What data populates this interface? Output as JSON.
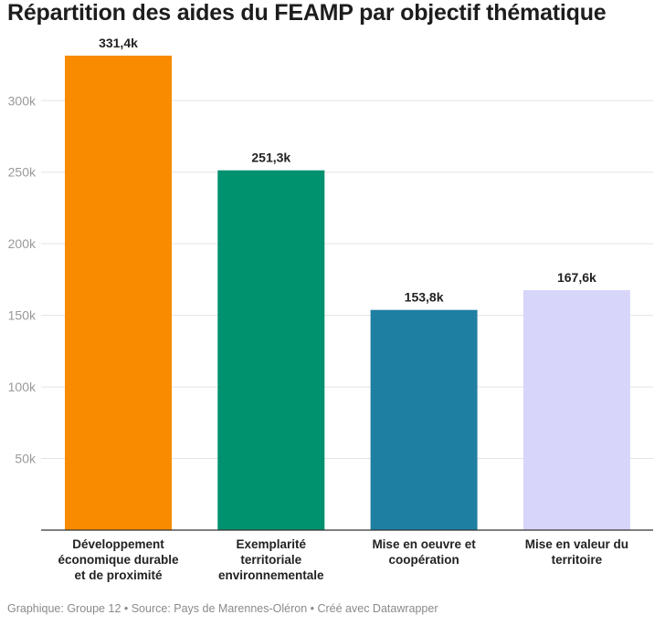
{
  "title": "Répartition des aides du FEAMP par objectif thématique",
  "footer": "Graphique: Groupe 12 • Source: Pays de Marennes-Oléron • Créé avec Datawrapper",
  "chart_data": {
    "type": "bar",
    "title": "Répartition des aides du FEAMP par objectif thématique",
    "xlabel": "",
    "ylabel": "",
    "ylim": [
      0,
      331400
    ],
    "yticks": [
      50000,
      100000,
      150000,
      200000,
      250000,
      300000
    ],
    "ytick_labels": [
      "50k",
      "100k",
      "150k",
      "200k",
      "250k",
      "300k"
    ],
    "grid": true,
    "categories": [
      "Développement économique durable et de proximité",
      "Exemplarité territoriale environnementale",
      "Mise en oeuvre et coopération",
      "Mise en valeur du territoire"
    ],
    "values": [
      331400,
      251300,
      153800,
      167600
    ],
    "value_labels": [
      "331,4k",
      "251,3k",
      "153,8k",
      "167,6k"
    ],
    "colors": [
      "#f98b00",
      "#00916e",
      "#1f7fa3",
      "#d7d6fa"
    ]
  }
}
